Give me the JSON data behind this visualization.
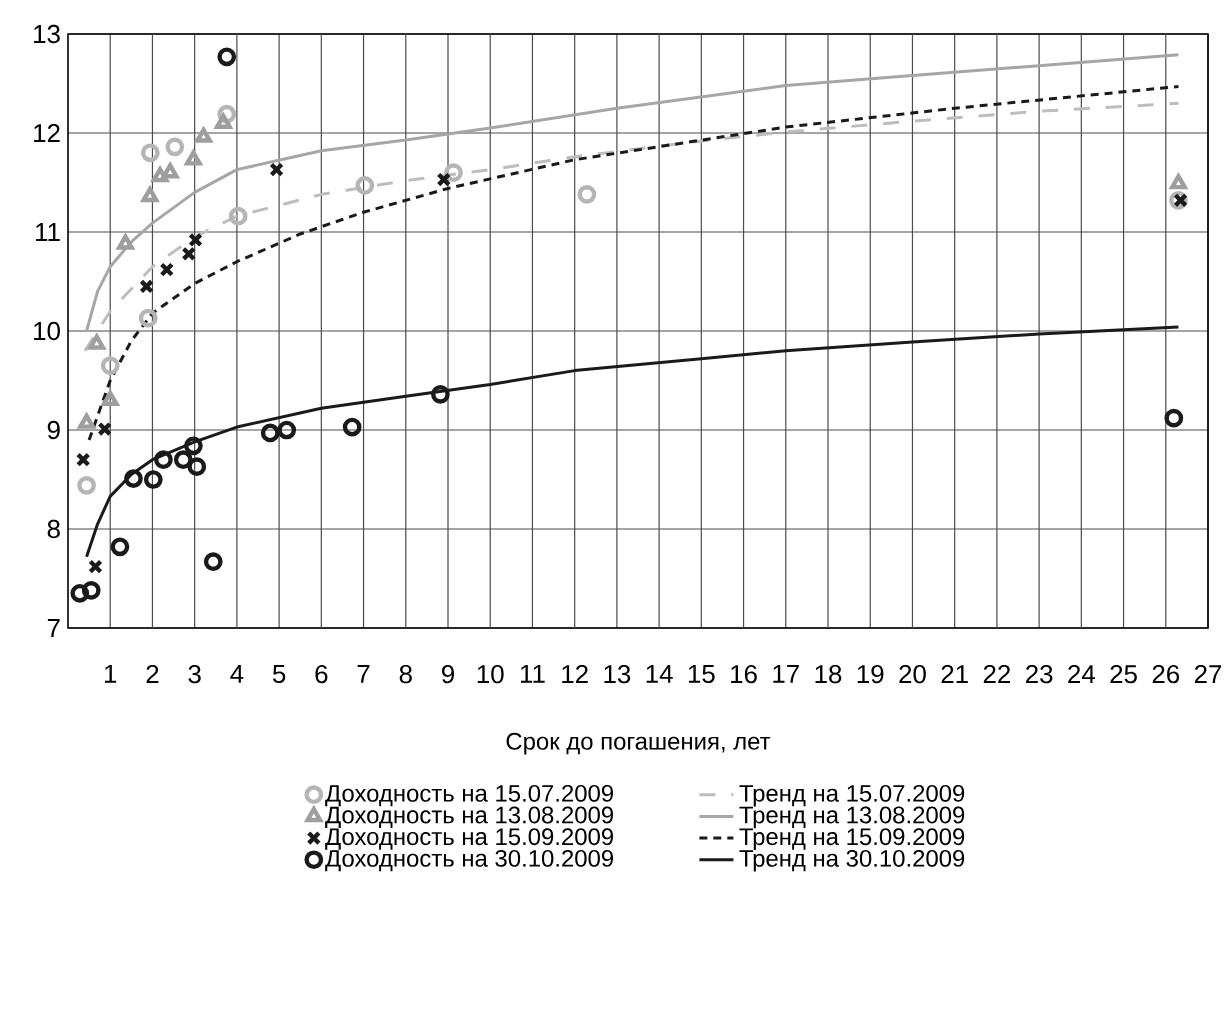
{
  "chart_data": {
    "type": "scatter",
    "xlabel": "Срок до погашения, лет",
    "xlim": [
      0,
      27
    ],
    "xticks": [
      1,
      2,
      3,
      4,
      5,
      6,
      7,
      8,
      9,
      10,
      11,
      12,
      13,
      14,
      15,
      16,
      17,
      18,
      19,
      20,
      21,
      22,
      23,
      24,
      25,
      26,
      27
    ],
    "ylim": [
      7,
      13
    ],
    "yticks": [
      7,
      8,
      9,
      10,
      11,
      12,
      13
    ],
    "grid": true,
    "legend": "bottom",
    "series": [
      {
        "name": "Доходность на 15.07.2009",
        "color": "#b5b5b5",
        "type": "scatter",
        "marker": "circle",
        "x": [
          0.44,
          1.0,
          1.9,
          1.95,
          2.53,
          3.76,
          4.03,
          7.03,
          9.13,
          12.29,
          26.3
        ],
        "values": [
          8.44,
          9.65,
          10.13,
          11.8,
          11.86,
          12.19,
          11.16,
          11.47,
          11.6,
          11.38,
          11.32
        ]
      },
      {
        "name": "Доходность на 13.08.2009",
        "color": "#9e9e9e",
        "type": "scatter",
        "marker": "triangle",
        "x": [
          0.44,
          0.68,
          1.0,
          1.36,
          1.94,
          2.18,
          2.42,
          2.97,
          3.21,
          3.68,
          26.3
        ],
        "values": [
          9.07,
          9.87,
          9.3,
          10.88,
          11.36,
          11.56,
          11.6,
          11.73,
          11.96,
          12.1,
          11.49
        ]
      },
      {
        "name": "Доходность на 15.09.2009",
        "color": "#1a1a1a",
        "type": "scatter",
        "marker": "cross",
        "x": [
          0.36,
          0.65,
          0.87,
          1.86,
          2.34,
          2.86,
          3.02,
          4.94,
          8.9,
          26.35
        ],
        "values": [
          8.7,
          7.62,
          9.01,
          10.45,
          10.62,
          10.78,
          10.92,
          11.63,
          11.53,
          11.32
        ]
      },
      {
        "name": "Доходность на 30.10.2009",
        "color": "#1a1a1a",
        "type": "scatter",
        "marker": "circle",
        "x": [
          0.28,
          0.55,
          1.23,
          1.55,
          2.02,
          2.26,
          2.73,
          2.97,
          3.05,
          3.44,
          3.76,
          4.79,
          5.18,
          6.73,
          8.82,
          26.19
        ],
        "values": [
          7.35,
          7.38,
          7.82,
          8.51,
          8.5,
          8.7,
          8.7,
          8.84,
          8.63,
          7.67,
          12.77,
          8.97,
          9.0,
          9.03,
          9.36,
          9.12
        ]
      },
      {
        "name": "Тренд на 15.07.2009",
        "color": "#bdbdbd",
        "type": "line",
        "line_style": "dashed",
        "x": [
          0.4,
          1,
          2,
          3,
          4,
          6,
          8,
          10,
          12,
          15,
          17,
          20,
          23,
          26.3
        ],
        "values": [
          9.8,
          10.2,
          10.65,
          10.95,
          11.16,
          11.38,
          11.52,
          11.63,
          11.76,
          11.92,
          12.01,
          12.12,
          12.22,
          12.3
        ]
      },
      {
        "name": "Тренд на 13.08.2009",
        "color": "#a6a6a6",
        "type": "line",
        "line_style": "solid",
        "x": [
          0.44,
          0.7,
          1,
          1.5,
          2,
          3,
          4,
          6,
          8,
          10,
          13,
          17,
          20,
          23,
          26.3
        ],
        "values": [
          10.0,
          10.4,
          10.65,
          10.9,
          11.09,
          11.4,
          11.63,
          11.82,
          11.93,
          12.05,
          12.25,
          12.48,
          12.58,
          12.68,
          12.79
        ]
      },
      {
        "name": "Тренд на 15.09.2009",
        "color": "#1a1a1a",
        "type": "line",
        "line_style": "dotted",
        "x": [
          0.5,
          1,
          1.5,
          2,
          3,
          4,
          5.5,
          7,
          9,
          12,
          17,
          21,
          26.3
        ],
        "values": [
          8.9,
          9.5,
          9.9,
          10.18,
          10.48,
          10.7,
          10.98,
          11.2,
          11.44,
          11.73,
          12.06,
          12.25,
          12.47
        ]
      },
      {
        "name": "Тренд на 30.10.2009",
        "color": "#1a1a1a",
        "type": "line",
        "line_style": "solid",
        "x": [
          0.44,
          0.7,
          1,
          1.5,
          2,
          3,
          4,
          6,
          8,
          10,
          12,
          15,
          17,
          20,
          23,
          26.3
        ],
        "values": [
          7.72,
          8.05,
          8.33,
          8.55,
          8.7,
          8.88,
          9.03,
          9.22,
          9.34,
          9.46,
          9.6,
          9.72,
          9.8,
          9.89,
          9.97,
          10.04
        ]
      }
    ]
  }
}
